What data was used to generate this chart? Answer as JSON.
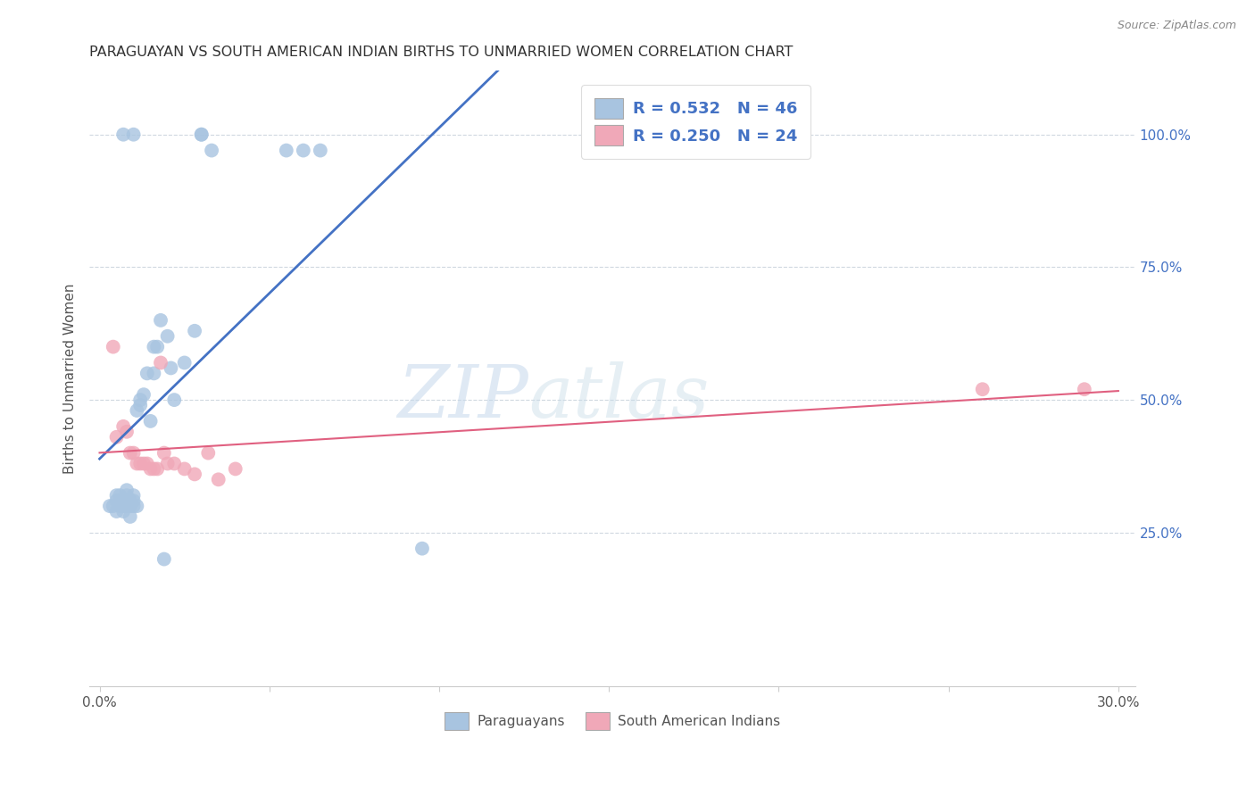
{
  "title": "PARAGUAYAN VS SOUTH AMERICAN INDIAN BIRTHS TO UNMARRIED WOMEN CORRELATION CHART",
  "source": "Source: ZipAtlas.com",
  "ylabel": "Births to Unmarried Women",
  "ytick_labels": [
    "100.0%",
    "75.0%",
    "50.0%",
    "25.0%"
  ],
  "ytick_positions": [
    1.0,
    0.75,
    0.5,
    0.25
  ],
  "xlim": [
    -0.003,
    0.305
  ],
  "ylim": [
    -0.04,
    1.12
  ],
  "paraguayan_color": "#a8c4e0",
  "sa_indian_color": "#f0a8b8",
  "line_paraguayan_color": "#4472c4",
  "line_sa_indian_color": "#e06080",
  "legend_label_1": "R = 0.532   N = 46",
  "legend_label_2": "R = 0.250   N = 24",
  "watermark_zip": "ZIP",
  "watermark_atlas": "atlas",
  "bottom_legend_1": "Paraguayans",
  "bottom_legend_2": "South American Indians",
  "paraguayan_x": [
    0.003,
    0.004,
    0.005,
    0.005,
    0.005,
    0.006,
    0.006,
    0.006,
    0.007,
    0.007,
    0.007,
    0.007,
    0.008,
    0.008,
    0.008,
    0.009,
    0.009,
    0.009,
    0.01,
    0.01,
    0.01,
    0.01,
    0.011,
    0.011,
    0.012,
    0.012,
    0.013,
    0.014,
    0.015,
    0.016,
    0.016,
    0.017,
    0.018,
    0.019,
    0.02,
    0.021,
    0.022,
    0.025,
    0.028,
    0.03,
    0.03,
    0.033,
    0.055,
    0.06,
    0.065,
    0.095
  ],
  "paraguayan_y": [
    0.3,
    0.3,
    0.29,
    0.31,
    0.32,
    0.3,
    0.31,
    0.32,
    0.29,
    0.3,
    0.31,
    1.0,
    0.3,
    0.32,
    0.33,
    0.28,
    0.3,
    0.31,
    0.3,
    0.31,
    0.32,
    1.0,
    0.3,
    0.48,
    0.49,
    0.5,
    0.51,
    0.55,
    0.46,
    0.55,
    0.6,
    0.6,
    0.65,
    0.2,
    0.62,
    0.56,
    0.5,
    0.57,
    0.63,
    1.0,
    1.0,
    0.97,
    0.97,
    0.97,
    0.97,
    0.22
  ],
  "sa_indian_x": [
    0.004,
    0.005,
    0.007,
    0.008,
    0.009,
    0.01,
    0.011,
    0.012,
    0.013,
    0.014,
    0.015,
    0.016,
    0.017,
    0.018,
    0.019,
    0.02,
    0.022,
    0.025,
    0.028,
    0.032,
    0.035,
    0.04,
    0.26,
    0.29
  ],
  "sa_indian_y": [
    0.6,
    0.43,
    0.45,
    0.44,
    0.4,
    0.4,
    0.38,
    0.38,
    0.38,
    0.38,
    0.37,
    0.37,
    0.37,
    0.57,
    0.4,
    0.38,
    0.38,
    0.37,
    0.36,
    0.4,
    0.35,
    0.37,
    0.52,
    0.52
  ]
}
